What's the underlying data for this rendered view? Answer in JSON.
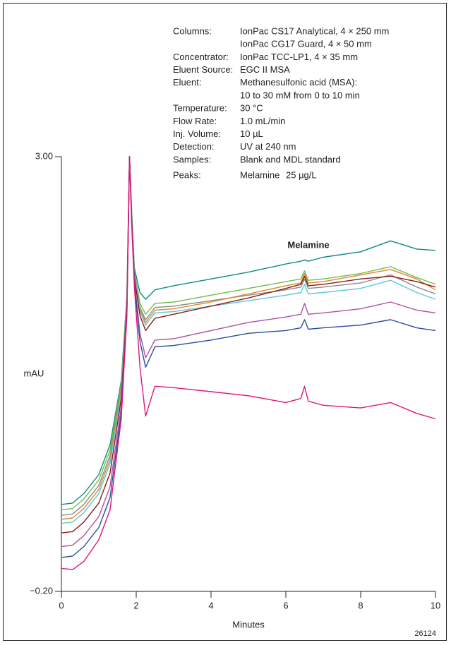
{
  "chart_data": {
    "type": "line",
    "ylabel": "mAU",
    "xlabel": "Minutes",
    "figure_id": "26124",
    "annotation": "Melamine",
    "conditions": [
      {
        "label": "Columns:",
        "lines": [
          "IonPac CS17 Analytical, 4 × 250 mm",
          "IonPac CG17 Guard, 4 × 50 mm"
        ]
      },
      {
        "label": "Concentrator:",
        "lines": [
          "IonPac TCC-LP1, 4 × 35 mm"
        ]
      },
      {
        "label": "Eluent Source:",
        "lines": [
          "EGC II MSA"
        ]
      },
      {
        "label": "Eluent:",
        "lines": [
          " Methanesulfonic acid (MSA):",
          "10 to 30 mM from 0 to 10 min"
        ]
      },
      {
        "label": "Temperature:",
        "lines": [
          "30 °C"
        ]
      },
      {
        "label": "Flow Rate:",
        "lines": [
          "1.0 mL/min"
        ]
      },
      {
        "label": "Inj. Volume:",
        "lines": [
          "10 µL"
        ]
      },
      {
        "label": "Detection:",
        "lines": [
          "UV at 240 nm"
        ]
      },
      {
        "label": "Samples:",
        "lines": [
          "Blank and MDL standard"
        ]
      }
    ],
    "peaks": {
      "label": "Peaks:",
      "name": "Melamine",
      "amount": "25 µg/L"
    },
    "xlim": [
      0,
      10
    ],
    "ylim": [
      -0.2,
      3.0
    ],
    "xticks": [
      0,
      2,
      4,
      6,
      8,
      10
    ],
    "yticks": [
      {
        "value": 3.0,
        "label": "3.00"
      },
      {
        "value": -0.2,
        "label": "−0.20"
      }
    ],
    "x": [
      0,
      0.3,
      0.6,
      1,
      1.3,
      1.6,
      1.75,
      1.82,
      1.88,
      1.95,
      2.1,
      2.25,
      2.5,
      3,
      4,
      5,
      6,
      6.4,
      6.5,
      6.6,
      7,
      8,
      8.8,
      9.5,
      10
    ],
    "series": [
      {
        "color": "#0e8a84",
        "values": [
          0.44,
          0.45,
          0.52,
          0.66,
          0.88,
          1.35,
          1.97,
          3.0,
          2.59,
          2.18,
          2.0,
          1.95,
          2.02,
          2.05,
          2.1,
          2.15,
          2.21,
          2.23,
          2.24,
          2.23,
          2.26,
          2.3,
          2.38,
          2.32,
          2.31
        ]
      },
      {
        "color": "#6cbf4a",
        "values": [
          0.4,
          0.41,
          0.48,
          0.62,
          0.84,
          1.33,
          1.96,
          3.0,
          2.58,
          2.16,
          1.92,
          1.84,
          1.92,
          1.93,
          1.98,
          2.03,
          2.08,
          2.1,
          2.16,
          2.09,
          2.1,
          2.14,
          2.19,
          2.11,
          2.06
        ]
      },
      {
        "color": "#8a8a8a",
        "values": [
          0.36,
          0.37,
          0.44,
          0.58,
          0.8,
          1.3,
          1.94,
          3.0,
          2.57,
          2.15,
          1.89,
          1.8,
          1.89,
          1.9,
          1.94,
          1.98,
          2.02,
          2.04,
          2.1,
          2.03,
          2.04,
          2.07,
          2.13,
          2.04,
          1.99
        ]
      },
      {
        "color": "#d98c2a",
        "values": [
          0.33,
          0.34,
          0.41,
          0.55,
          0.77,
          1.28,
          1.93,
          3.0,
          2.57,
          2.14,
          1.88,
          1.78,
          1.87,
          1.88,
          1.93,
          1.99,
          2.05,
          2.07,
          2.14,
          2.07,
          2.08,
          2.13,
          2.17,
          2.1,
          2.02
        ]
      },
      {
        "color": "#5bc8dc",
        "values": [
          0.3,
          0.31,
          0.38,
          0.52,
          0.74,
          1.26,
          1.92,
          3.0,
          2.56,
          2.13,
          1.86,
          1.76,
          1.85,
          1.86,
          1.9,
          1.94,
          1.98,
          2.0,
          2.06,
          1.99,
          2.0,
          2.03,
          2.09,
          2.0,
          1.95
        ]
      },
      {
        "color": "#8b1a1a",
        "values": [
          0.23,
          0.24,
          0.31,
          0.45,
          0.67,
          1.22,
          1.9,
          3.0,
          2.55,
          2.11,
          1.83,
          1.72,
          1.81,
          1.84,
          1.9,
          1.96,
          2.03,
          2.06,
          2.12,
          2.05,
          2.06,
          2.1,
          2.12,
          2.08,
          2.04
        ]
      },
      {
        "color": "#b0509e",
        "values": [
          0.13,
          0.14,
          0.21,
          0.35,
          0.57,
          1.16,
          1.87,
          3.0,
          2.53,
          2.09,
          1.7,
          1.52,
          1.65,
          1.66,
          1.72,
          1.78,
          1.82,
          1.84,
          1.92,
          1.84,
          1.85,
          1.88,
          1.93,
          1.87,
          1.85
        ]
      },
      {
        "color": "#2a4c9e",
        "values": [
          0.05,
          0.06,
          0.13,
          0.27,
          0.49,
          1.11,
          1.85,
          3.0,
          2.52,
          2.07,
          1.64,
          1.45,
          1.6,
          1.61,
          1.65,
          1.7,
          1.72,
          1.74,
          1.8,
          1.73,
          1.74,
          1.76,
          1.8,
          1.74,
          1.72
        ]
      },
      {
        "color": "#e0157a",
        "values": [
          -0.03,
          -0.04,
          0.02,
          0.18,
          0.4,
          1.07,
          1.83,
          3.0,
          2.5,
          2.04,
          1.45,
          1.09,
          1.31,
          1.3,
          1.27,
          1.24,
          1.19,
          1.22,
          1.31,
          1.2,
          1.17,
          1.15,
          1.19,
          1.11,
          1.07
        ]
      }
    ]
  }
}
